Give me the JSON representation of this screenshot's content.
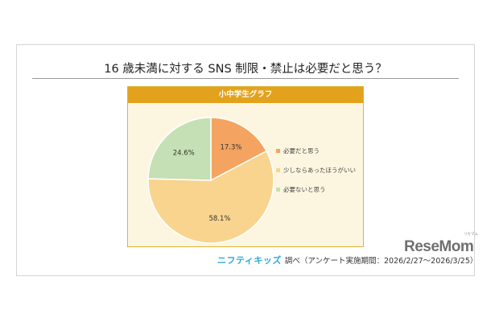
{
  "chart_data": {
    "type": "pie",
    "title": "16 歳未満に対する SNS 制限・禁止は必要だと思う？",
    "subtitle": "小中学生グラフ",
    "slices": [
      {
        "label": "必要だと思う",
        "value": 17.3,
        "value_label": "17.3%",
        "color": "#f4a460"
      },
      {
        "label": "少しならあったほうがいい",
        "value": 58.1,
        "value_label": "58.1%",
        "color": "#f8d48f"
      },
      {
        "label": "必要ないと思う",
        "value": 24.6,
        "value_label": "24.6%",
        "color": "#c5e0b4"
      }
    ],
    "legend_position": "right"
  },
  "source": {
    "brand": "ニフティキッズ",
    "text": "調べ（アンケート実施期間：2026/2/27～2026/3/25）"
  },
  "watermark": {
    "logo_text": "ReseMom",
    "kana": "リセマム"
  }
}
